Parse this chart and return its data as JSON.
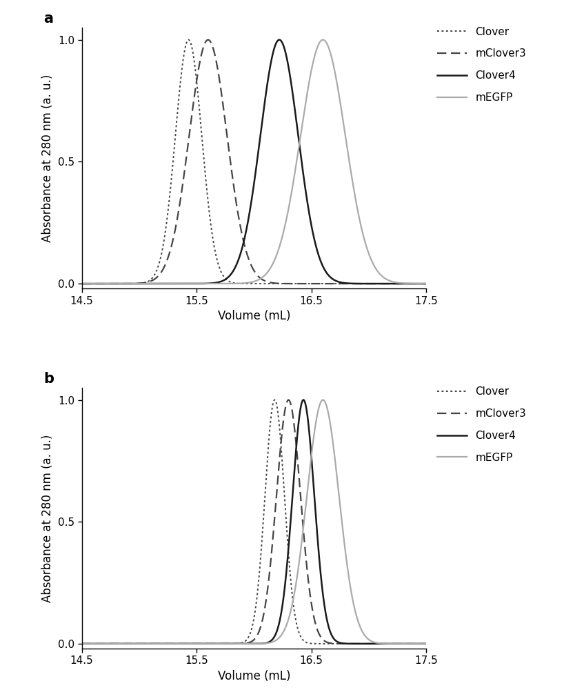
{
  "panel_a": {
    "series": [
      {
        "label": "Clover",
        "mu": 15.43,
        "sigma": 0.115,
        "color": "#444444",
        "linestyle": "densedot",
        "linewidth": 1.4
      },
      {
        "label": "mClover3",
        "mu": 15.6,
        "sigma": 0.165,
        "color": "#444444",
        "linestyle": "dashed",
        "linewidth": 1.6
      },
      {
        "label": "Clover4",
        "mu": 16.22,
        "sigma": 0.165,
        "color": "#1a1a1a",
        "linestyle": "solid",
        "linewidth": 1.8
      },
      {
        "label": "mEGFP",
        "mu": 16.6,
        "sigma": 0.195,
        "color": "#aaaaaa",
        "linestyle": "solid",
        "linewidth": 1.6
      }
    ],
    "xlim": [
      14.5,
      17.5
    ],
    "ylim": [
      -0.02,
      1.05
    ],
    "xlabel": "Volume (mL)",
    "ylabel": "Absorbance at 280 nm (a. u.)",
    "panel_label": "a",
    "xticks": [
      14.5,
      15.5,
      16.5,
      17.5
    ],
    "yticks": [
      0.0,
      0.5,
      1.0
    ]
  },
  "panel_b": {
    "series": [
      {
        "label": "Clover",
        "mu": 16.18,
        "sigma": 0.085,
        "color": "#444444",
        "linestyle": "densedot",
        "linewidth": 1.4
      },
      {
        "label": "mClover3",
        "mu": 16.3,
        "sigma": 0.105,
        "color": "#444444",
        "linestyle": "dashed",
        "linewidth": 1.6
      },
      {
        "label": "Clover4",
        "mu": 16.43,
        "sigma": 0.095,
        "color": "#1a1a1a",
        "linestyle": "solid",
        "linewidth": 1.8
      },
      {
        "label": "mEGFP",
        "mu": 16.6,
        "sigma": 0.14,
        "color": "#aaaaaa",
        "linestyle": "solid",
        "linewidth": 1.6
      }
    ],
    "xlim": [
      14.5,
      17.5
    ],
    "ylim": [
      -0.02,
      1.05
    ],
    "xlabel": "Volume (mL)",
    "ylabel": "Absorbance at 280 nm (a. u.)",
    "panel_label": "b",
    "xticks": [
      14.5,
      15.5,
      16.5,
      17.5
    ],
    "yticks": [
      0.0,
      0.5,
      1.0
    ]
  },
  "legend_labels": [
    "Clover",
    "mClover3",
    "Clover4",
    "mEGFP"
  ],
  "legend_linestyles": [
    "densedot",
    "dashed",
    "solid",
    "solid"
  ],
  "legend_colors": [
    "#444444",
    "#444444",
    "#1a1a1a",
    "#aaaaaa"
  ],
  "legend_linewidths": [
    1.4,
    1.6,
    1.8,
    1.6
  ],
  "background_color": "#ffffff",
  "font_size": 11,
  "label_font_size": 12,
  "panel_label_fontsize": 15
}
